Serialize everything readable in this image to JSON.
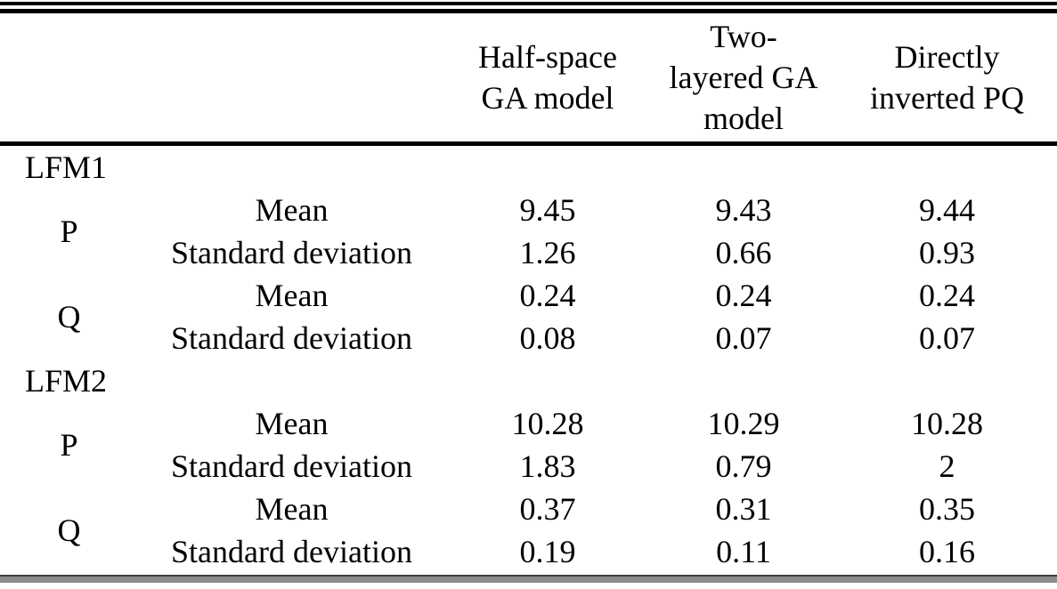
{
  "table": {
    "col_headers": [
      {
        "name": "half-space-ga-model",
        "text": "Half-space GA model",
        "lines": [
          "Half-space",
          "GA model"
        ]
      },
      {
        "name": "two-layered-ga-model",
        "text": "Two-layered GA model",
        "lines": [
          "Two-",
          "layered GA",
          "model"
        ]
      },
      {
        "name": "directly-inverted-pq",
        "text": "Directly inverted PQ",
        "lines": [
          "Directly",
          "inverted PQ"
        ]
      }
    ],
    "sections": [
      {
        "label": "LFM1",
        "groups": [
          {
            "param": "P",
            "rows": [
              {
                "stat": "Mean",
                "values": [
                  "9.45",
                  "9.43",
                  "9.44"
                ]
              },
              {
                "stat": "Standard deviation",
                "values": [
                  "1.26",
                  "0.66",
                  "0.93"
                ]
              }
            ]
          },
          {
            "param": "Q",
            "rows": [
              {
                "stat": "Mean",
                "values": [
                  "0.24",
                  "0.24",
                  "0.24"
                ]
              },
              {
                "stat": "Standard deviation",
                "values": [
                  "0.08",
                  "0.07",
                  "0.07"
                ]
              }
            ]
          }
        ]
      },
      {
        "label": "LFM2",
        "groups": [
          {
            "param": "P",
            "rows": [
              {
                "stat": "Mean",
                "values": [
                  "10.28",
                  "10.29",
                  "10.28"
                ]
              },
              {
                "stat": "Standard deviation",
                "values": [
                  "1.83",
                  "0.79",
                  "2"
                ]
              }
            ]
          },
          {
            "param": "Q",
            "rows": [
              {
                "stat": "Mean",
                "values": [
                  "0.37",
                  "0.31",
                  "0.35"
                ]
              },
              {
                "stat": "Standard deviation",
                "values": [
                  "0.19",
                  "0.11",
                  "0.16"
                ]
              }
            ]
          }
        ]
      }
    ],
    "colors": {
      "text": "#000000",
      "rule": "#000000",
      "bottom_rule_dark": "#3d3d3d",
      "bottom_rule_gray": "#8d8d8d",
      "background": "#ffffff"
    }
  }
}
